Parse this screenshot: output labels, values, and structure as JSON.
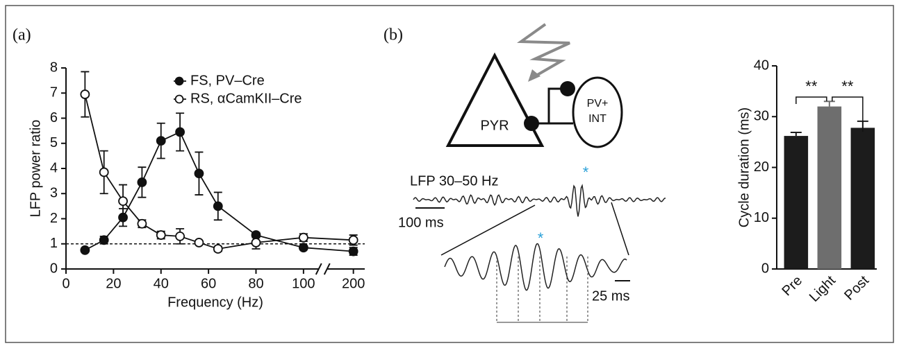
{
  "panel_labels": [
    "(a)",
    "(b)"
  ],
  "chart_data": [
    {
      "type": "line",
      "xlabel": "Frequency (Hz)",
      "ylabel": "LFP power ratio",
      "x": [
        8,
        16,
        24,
        32,
        40,
        48,
        56,
        64,
        80,
        100,
        200
      ],
      "series": [
        {
          "name": "FS, PV–Cre",
          "color": "#111111",
          "marker": "filled",
          "values": [
            0.75,
            1.15,
            2.05,
            3.45,
            5.1,
            5.45,
            3.8,
            2.5,
            1.35,
            0.85,
            0.7
          ],
          "errors": [
            0.05,
            0.15,
            0.35,
            0.6,
            0.7,
            0.75,
            0.85,
            0.55,
            0.1,
            0.05,
            0.15
          ]
        },
        {
          "name": "RS, αCamKII–Cre",
          "color": "#111111",
          "marker": "open",
          "values": [
            6.95,
            3.85,
            2.7,
            1.8,
            1.35,
            1.3,
            1.05,
            0.8,
            1.05,
            1.25,
            1.15
          ],
          "errors": [
            0.9,
            0.85,
            0.65,
            0.15,
            0.15,
            0.3,
            0.05,
            0.1,
            0.25,
            0.15,
            0.2
          ]
        }
      ],
      "xlim": [
        0,
        200
      ],
      "xticks": [
        0,
        20,
        40,
        60,
        80,
        100,
        200
      ],
      "xbreak": 100,
      "ylim": [
        0,
        8
      ],
      "yticks": [
        0,
        1,
        2,
        3,
        4,
        5,
        6,
        7,
        8
      ],
      "reference_line": 1,
      "legend": "upper right"
    },
    {
      "type": "bar",
      "ylabel": "Cycle duration (ms)",
      "categories": [
        "Pre",
        "Light",
        "Post"
      ],
      "values": [
        26.2,
        32,
        27.8
      ],
      "errors": [
        0.7,
        1,
        1.3
      ],
      "colors": [
        "#1c1c1c",
        "#6e6e6e",
        "#1c1c1c"
      ],
      "ylim": [
        0,
        40
      ],
      "yticks": [
        0,
        10,
        20,
        30,
        40
      ],
      "annotations": [
        {
          "text": "**",
          "between": [
            0,
            1
          ]
        },
        {
          "text": "**",
          "between": [
            1,
            2
          ]
        }
      ]
    }
  ],
  "diagram": {
    "pyr": "PYR",
    "int": [
      "PV+",
      "INT"
    ],
    "trace_label": "LFP 30–50 Hz",
    "scale_long": "100 ms",
    "scale_short": "25 ms",
    "marker": "*"
  }
}
